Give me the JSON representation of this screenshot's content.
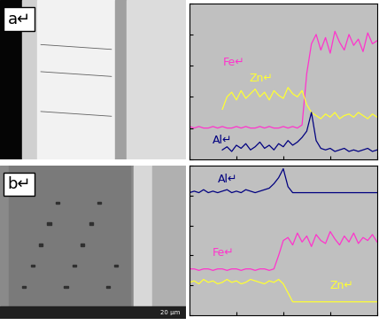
{
  "chart_data": [
    {
      "type": "line",
      "title": "a↵",
      "tick_labels": false,
      "grid": false,
      "x": [
        0,
        2.5,
        5,
        7.5,
        10,
        12.5,
        15,
        17.5,
        20,
        22.5,
        25,
        27.5,
        30,
        32.5,
        35,
        37.5,
        40,
        42.5,
        45,
        47.5,
        50,
        52.5,
        55,
        57.5,
        60,
        62.5,
        65,
        67.5,
        70,
        72.5,
        75,
        77.5,
        80,
        82.5,
        85,
        87.5,
        90,
        92.5,
        95,
        97.5,
        100
      ],
      "xlim": [
        0,
        100
      ],
      "ylim": [
        0,
        100
      ],
      "xticks": [
        0,
        25,
        50,
        75,
        100
      ],
      "yticks": [
        0,
        20,
        40,
        60,
        80,
        100
      ],
      "series": [
        {
          "name": "Fe↵",
          "color": "#ff33cc",
          "values": [
            21,
            20,
            21,
            20,
            20,
            21,
            20,
            21,
            20,
            20,
            21,
            20,
            21,
            20,
            20,
            21,
            20,
            21,
            20,
            20,
            21,
            20,
            21,
            20,
            22,
            55,
            74,
            80,
            70,
            78,
            68,
            82,
            75,
            70,
            80,
            73,
            77,
            69,
            81,
            74,
            76
          ]
        },
        {
          "name": "Zn↵",
          "color": "#ffff33",
          "values": [
            null,
            null,
            null,
            null,
            null,
            null,
            null,
            32,
            40,
            43,
            38,
            44,
            39,
            42,
            45,
            40,
            43,
            38,
            44,
            41,
            39,
            46,
            42,
            40,
            44,
            35,
            30,
            28,
            26,
            29,
            27,
            30,
            26,
            28,
            29,
            27,
            30,
            28,
            26,
            29,
            27
          ]
        },
        {
          "name": "Al↵",
          "color": "#000080",
          "values": [
            null,
            null,
            null,
            null,
            null,
            null,
            null,
            6,
            8,
            5,
            9,
            7,
            10,
            6,
            8,
            11,
            7,
            9,
            6,
            10,
            8,
            12,
            9,
            11,
            14,
            18,
            30,
            12,
            7,
            6,
            7,
            5,
            6,
            7,
            5,
            6,
            5,
            6,
            7,
            5,
            6
          ]
        }
      ]
    },
    {
      "type": "line",
      "title": "b↵",
      "tick_labels": false,
      "grid": false,
      "x": [
        0,
        2.5,
        5,
        7.5,
        10,
        12.5,
        15,
        17.5,
        20,
        22.5,
        25,
        27.5,
        30,
        32.5,
        35,
        37.5,
        40,
        42.5,
        45,
        47.5,
        50,
        52.5,
        55,
        57.5,
        60,
        62.5,
        65,
        67.5,
        70,
        72.5,
        75,
        77.5,
        80,
        82.5,
        85,
        87.5,
        90,
        92.5,
        95,
        97.5,
        100
      ],
      "xlim": [
        0,
        100
      ],
      "ylim": [
        0,
        100
      ],
      "xticks": [
        0,
        25,
        50,
        75,
        100
      ],
      "yticks": [
        0,
        20,
        40,
        60,
        80,
        100
      ],
      "series": [
        {
          "name": "Al↵",
          "color": "#000080",
          "values": [
            82,
            83,
            82,
            84,
            82,
            83,
            82,
            83,
            84,
            82,
            83,
            82,
            84,
            83,
            82,
            83,
            84,
            85,
            88,
            92,
            98,
            86,
            82,
            82,
            82,
            82,
            82,
            82,
            82,
            82,
            82,
            82,
            82,
            82,
            82,
            82,
            82,
            82,
            82,
            82,
            82
          ]
        },
        {
          "name": "Fe↵",
          "color": "#ff33cc",
          "values": [
            31,
            31,
            30,
            31,
            31,
            30,
            31,
            31,
            30,
            31,
            31,
            30,
            31,
            31,
            30,
            31,
            31,
            30,
            31,
            40,
            50,
            52,
            47,
            55,
            49,
            53,
            46,
            54,
            50,
            48,
            56,
            51,
            47,
            53,
            49,
            55,
            48,
            52,
            50,
            54,
            49
          ]
        },
        {
          "name": "Zn↵",
          "color": "#ffff33",
          "values": [
            22,
            23,
            21,
            24,
            22,
            23,
            21,
            22,
            24,
            22,
            23,
            21,
            22,
            24,
            23,
            22,
            21,
            23,
            22,
            24,
            21,
            15,
            9,
            9,
            9,
            9,
            9,
            9,
            9,
            9,
            9,
            9,
            9,
            9,
            9,
            9,
            9,
            9,
            9,
            9,
            9
          ]
        }
      ]
    }
  ],
  "scale_bar": "20 μm"
}
